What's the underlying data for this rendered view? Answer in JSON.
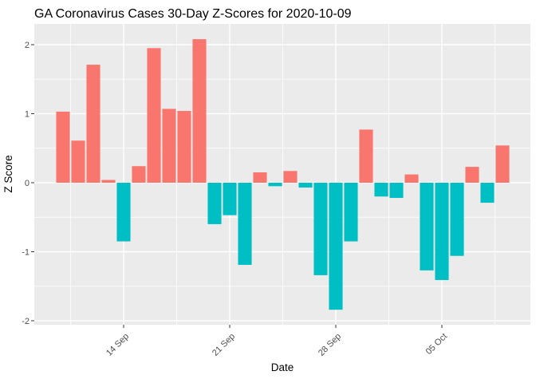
{
  "chart_data": {
    "type": "bar",
    "title": "GA Coronavirus Cases 30-Day Z-Scores for 2020-10-09",
    "xlabel": "Date",
    "ylabel": "Z Score",
    "legend": "none",
    "grid": "on",
    "panel_bg_color": "#EBEBEB",
    "grid_color": "#FFFFFF",
    "tick_mark_color": "#333333",
    "axis_text_color": "#4D4D4D",
    "axis_title_color": "#000000",
    "bar_positive_color": "#F8766D",
    "bar_negative_color": "#00BFC4",
    "ylim": [
      -2.06,
      2.27
    ],
    "y_ticks": [
      {
        "value": 2,
        "label": "2"
      },
      {
        "value": 1,
        "label": "1"
      },
      {
        "value": 0,
        "label": "0"
      },
      {
        "value": -1,
        "label": "-1"
      },
      {
        "value": -2,
        "label": "-2"
      }
    ],
    "y_minor_ticks": [
      1.5,
      0.5,
      -0.5,
      -1.5
    ],
    "x_ticks": [
      {
        "date": "2020-09-14",
        "label": "14 Sep"
      },
      {
        "date": "2020-09-21",
        "label": "21 Sep"
      },
      {
        "date": "2020-09-28",
        "label": "28 Sep"
      },
      {
        "date": "2020-10-05",
        "label": "05 Oct"
      }
    ],
    "dates": [
      "2020-09-10",
      "2020-09-11",
      "2020-09-12",
      "2020-09-13",
      "2020-09-14",
      "2020-09-15",
      "2020-09-16",
      "2020-09-17",
      "2020-09-18",
      "2020-09-19",
      "2020-09-20",
      "2020-09-21",
      "2020-09-22",
      "2020-09-23",
      "2020-09-24",
      "2020-09-25",
      "2020-09-26",
      "2020-09-27",
      "2020-09-28",
      "2020-09-29",
      "2020-09-30",
      "2020-10-01",
      "2020-10-02",
      "2020-10-03",
      "2020-10-04",
      "2020-10-05",
      "2020-10-06",
      "2020-10-07",
      "2020-10-08",
      "2020-10-09"
    ],
    "values": [
      1.03,
      0.61,
      1.71,
      0.04,
      -0.85,
      0.24,
      1.95,
      1.07,
      1.04,
      2.08,
      -0.6,
      -0.47,
      -1.19,
      0.15,
      -0.05,
      0.17,
      -0.07,
      -1.34,
      -1.84,
      -0.85,
      0.77,
      -0.2,
      -0.22,
      0.12,
      -1.27,
      -1.41,
      -1.06,
      0.23,
      -0.29,
      0.54
    ]
  }
}
